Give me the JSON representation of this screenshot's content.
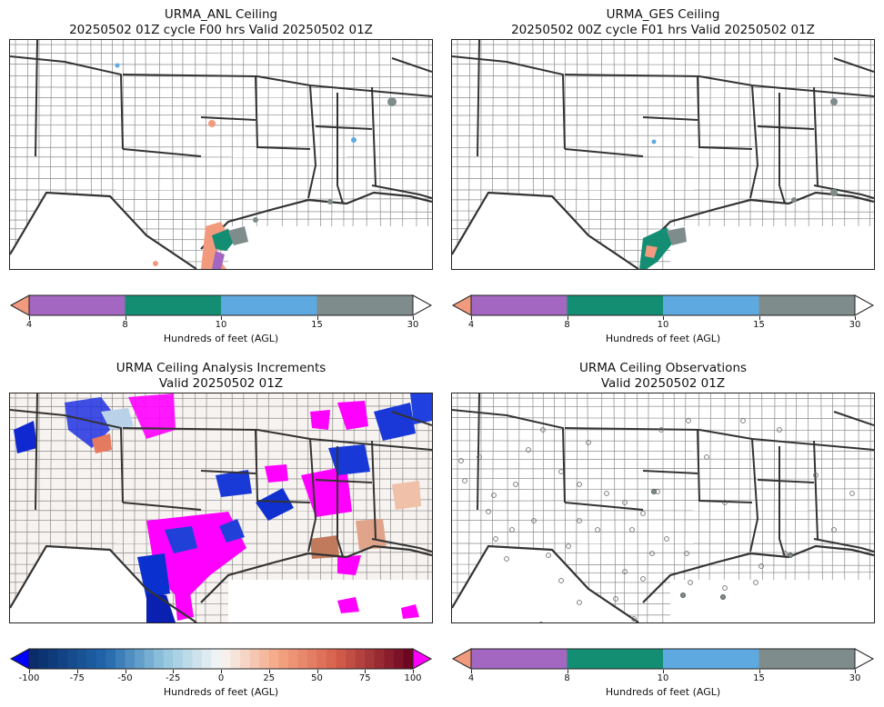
{
  "panels": [
    {
      "title_line1": "URMA_ANL Ceiling",
      "title_line2": "20250502 01Z cycle F00 hrs Valid 20250502 01Z",
      "colorbar": {
        "label": "Hundreds of feet (AGL)",
        "ticks": [
          "4",
          "8",
          "10",
          "15",
          "30"
        ],
        "colors": [
          "#f29a7e",
          "#a467c1",
          "#148e73",
          "#5ea9e0",
          "#7f8c8c",
          "#ffffff"
        ]
      }
    },
    {
      "title_line1": "URMA_GES Ceiling",
      "title_line2": "20250502 00Z cycle F01 hrs Valid 20250502 01Z",
      "colorbar": {
        "label": "Hundreds of feet (AGL)",
        "ticks": [
          "4",
          "8",
          "10",
          "15",
          "30"
        ],
        "colors": [
          "#f29a7e",
          "#a467c1",
          "#148e73",
          "#5ea9e0",
          "#7f8c8c",
          "#ffffff"
        ]
      }
    },
    {
      "title_line1": "URMA Ceiling Analysis Increments",
      "title_line2": "Valid 20250502 01Z",
      "colorbar": {
        "label": "Hundreds of feet (AGL)",
        "ticks": [
          "-100",
          "-75",
          "-50",
          "-25",
          "0",
          "25",
          "50",
          "75",
          "100"
        ],
        "low_color": "#0000ff",
        "high_color": "#ff00ff"
      }
    },
    {
      "title_line1": "URMA Ceiling Observations",
      "title_line2": "Valid 20250502 01Z",
      "colorbar": {
        "label": "Hundreds of feet (AGL)",
        "ticks": [
          "4",
          "8",
          "10",
          "15",
          "30"
        ],
        "colors": [
          "#f29a7e",
          "#a467c1",
          "#148e73",
          "#5ea9e0",
          "#7f8c8c",
          "#ffffff"
        ]
      }
    }
  ]
}
